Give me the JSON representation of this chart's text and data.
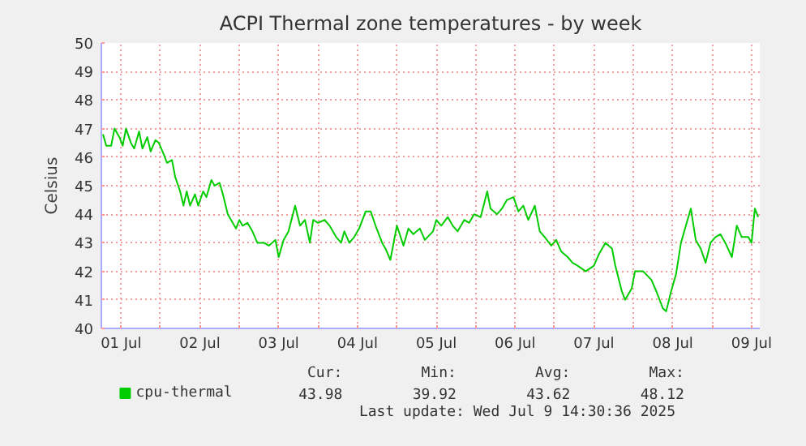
{
  "chart_data": {
    "type": "line",
    "title": "ACPI Thermal zone temperatures - by week",
    "ylabel": "Celsius",
    "x": [
      "2025-07-01T06:30",
      "2025-07-01T07:30",
      "2025-07-01T09:00",
      "2025-07-01T10:00",
      "2025-07-01T11:30",
      "2025-07-01T12:30",
      "2025-07-01T13:30",
      "2025-07-01T15:00",
      "2025-07-01T16:00",
      "2025-07-01T17:30",
      "2025-07-01T18:30",
      "2025-07-01T20:00",
      "2025-07-01T21:00",
      "2025-07-01T22:30",
      "2025-07-01T23:30",
      "2025-07-02T01:00",
      "2025-07-02T02:00",
      "2025-07-02T03:30",
      "2025-07-02T04:30",
      "2025-07-02T06:00",
      "2025-07-02T07:00",
      "2025-07-02T08:00",
      "2025-07-02T09:00",
      "2025-07-02T10:30",
      "2025-07-02T11:30",
      "2025-07-02T13:00",
      "2025-07-02T14:00",
      "2025-07-02T15:30",
      "2025-07-02T16:30",
      "2025-07-02T18:00",
      "2025-07-02T19:00",
      "2025-07-02T20:30",
      "2025-07-02T21:30",
      "2025-07-02T23:00",
      "2025-07-03T00:00",
      "2025-07-03T01:00",
      "2025-07-03T02:30",
      "2025-07-03T04:00",
      "2025-07-03T05:30",
      "2025-07-03T07:30",
      "2025-07-03T09:00",
      "2025-07-03T11:00",
      "2025-07-03T12:00",
      "2025-07-03T13:30",
      "2025-07-03T15:00",
      "2025-07-03T17:00",
      "2025-07-03T18:30",
      "2025-07-03T20:00",
      "2025-07-03T21:30",
      "2025-07-03T22:30",
      "2025-07-04T00:00",
      "2025-07-04T02:00",
      "2025-07-04T03:30",
      "2025-07-04T05:30",
      "2025-07-04T07:00",
      "2025-07-04T08:00",
      "2025-07-04T09:30",
      "2025-07-04T11:00",
      "2025-07-04T12:30",
      "2025-07-04T14:30",
      "2025-07-04T16:00",
      "2025-07-04T17:30",
      "2025-07-04T19:30",
      "2025-07-04T20:30",
      "2025-07-04T22:00",
      "2025-07-04T23:00",
      "2025-07-05T00:00",
      "2025-07-05T02:00",
      "2025-07-05T03:30",
      "2025-07-05T05:00",
      "2025-07-05T07:00",
      "2025-07-05T08:30",
      "2025-07-05T11:00",
      "2025-07-05T12:00",
      "2025-07-05T13:30",
      "2025-07-05T15:30",
      "2025-07-05T17:00",
      "2025-07-05T18:30",
      "2025-07-05T20:30",
      "2025-07-05T22:00",
      "2025-07-05T23:30",
      "2025-07-06T01:30",
      "2025-07-06T03:30",
      "2025-07-06T04:30",
      "2025-07-06T06:30",
      "2025-07-06T08:00",
      "2025-07-06T09:30",
      "2025-07-06T11:30",
      "2025-07-06T13:00",
      "2025-07-06T14:30",
      "2025-07-06T16:00",
      "2025-07-06T18:00",
      "2025-07-06T19:30",
      "2025-07-06T21:00",
      "2025-07-06T23:00",
      "2025-07-07T00:30",
      "2025-07-07T02:00",
      "2025-07-07T04:00",
      "2025-07-07T05:30",
      "2025-07-07T07:00",
      "2025-07-07T09:30",
      "2025-07-07T12:00",
      "2025-07-07T13:30",
      "2025-07-07T15:30",
      "2025-07-07T17:30",
      "2025-07-07T18:30",
      "2025-07-07T20:30",
      "2025-07-07T21:30",
      "2025-07-07T23:30",
      "2025-07-08T00:30",
      "2025-07-08T03:00",
      "2025-07-08T05:30",
      "2025-07-08T07:00",
      "2025-07-08T09:00",
      "2025-07-08T10:00",
      "2025-07-08T11:30",
      "2025-07-08T13:00",
      "2025-07-08T14:30",
      "2025-07-08T16:00",
      "2025-07-08T17:30",
      "2025-07-08T19:00",
      "2025-07-08T20:30",
      "2025-07-08T22:00",
      "2025-07-08T23:30",
      "2025-07-09T01:00",
      "2025-07-09T02:30",
      "2025-07-09T04:00",
      "2025-07-09T06:00",
      "2025-07-09T07:30",
      "2025-07-09T09:00",
      "2025-07-09T11:00",
      "2025-07-09T12:00",
      "2025-07-09T13:00",
      "2025-07-09T14:00"
    ],
    "series": [
      {
        "name": "cpu-thermal",
        "color": "#00cc00",
        "values": [
          46.8,
          46.4,
          46.4,
          47.0,
          46.7,
          46.4,
          47.0,
          46.5,
          46.3,
          46.9,
          46.3,
          46.7,
          46.2,
          46.6,
          46.5,
          46.1,
          45.8,
          45.9,
          45.3,
          44.8,
          44.3,
          44.8,
          44.3,
          44.7,
          44.3,
          44.8,
          44.6,
          45.2,
          45.0,
          45.1,
          44.7,
          44.0,
          43.8,
          43.5,
          43.8,
          43.6,
          43.7,
          43.4,
          43.0,
          43.0,
          42.9,
          43.1,
          42.5,
          43.1,
          43.4,
          44.3,
          43.6,
          43.8,
          43.0,
          43.8,
          43.7,
          43.8,
          43.6,
          43.2,
          43.0,
          43.4,
          43.0,
          43.2,
          43.5,
          44.1,
          44.1,
          43.6,
          43.0,
          42.8,
          42.4,
          43.0,
          43.6,
          42.9,
          43.5,
          43.3,
          43.5,
          43.1,
          43.4,
          43.8,
          43.6,
          43.9,
          43.6,
          43.4,
          43.8,
          43.7,
          44.0,
          43.9,
          44.8,
          44.2,
          44.0,
          44.2,
          44.5,
          44.6,
          44.1,
          44.3,
          43.8,
          44.3,
          43.4,
          43.2,
          42.9,
          43.1,
          42.7,
          42.5,
          42.3,
          42.2,
          42.0,
          42.2,
          42.6,
          43.0,
          42.8,
          42.2,
          41.3,
          41.0,
          41.4,
          42.0,
          42.0,
          41.7,
          41.3,
          40.7,
          40.6,
          41.3,
          41.9,
          43.0,
          43.6,
          44.2,
          43.1,
          42.8,
          42.3,
          43.0,
          43.2,
          43.3,
          43.0,
          42.5,
          43.6,
          43.2,
          43.2,
          43.0,
          44.2,
          43.9
        ]
      }
    ],
    "xlim": [
      "2025-07-01T06:00",
      "2025-07-09T14:30"
    ],
    "xticks": [
      {
        "value": "2025-07-01T12:00",
        "label": "01 Jul"
      },
      {
        "value": "2025-07-02T00:00",
        "label": null
      },
      {
        "value": "2025-07-02T12:00",
        "label": "02 Jul"
      },
      {
        "value": "2025-07-03T00:00",
        "label": null
      },
      {
        "value": "2025-07-03T12:00",
        "label": "03 Jul"
      },
      {
        "value": "2025-07-04T00:00",
        "label": null
      },
      {
        "value": "2025-07-04T12:00",
        "label": "04 Jul"
      },
      {
        "value": "2025-07-05T00:00",
        "label": null
      },
      {
        "value": "2025-07-05T12:00",
        "label": "05 Jul"
      },
      {
        "value": "2025-07-06T00:00",
        "label": null
      },
      {
        "value": "2025-07-06T12:00",
        "label": "06 Jul"
      },
      {
        "value": "2025-07-07T00:00",
        "label": null
      },
      {
        "value": "2025-07-07T12:00",
        "label": "07 Jul"
      },
      {
        "value": "2025-07-08T00:00",
        "label": null
      },
      {
        "value": "2025-07-08T12:00",
        "label": "08 Jul"
      },
      {
        "value": "2025-07-09T00:00",
        "label": null
      },
      {
        "value": "2025-07-09T12:00",
        "label": "09 Jul"
      }
    ],
    "ylim": [
      40,
      50
    ],
    "yticks": [
      40,
      41,
      42,
      43,
      44,
      45,
      46,
      47,
      48,
      49,
      50
    ],
    "grid": true,
    "legend": "bottom",
    "marker": "none",
    "line_style": "solid",
    "annotations": [
      "Cur:",
      "43.98",
      "Min:",
      "39.92",
      "Avg:",
      "43.62",
      "Max:",
      "48.12",
      "Last update: Wed Jul  9 14:30:36 2025"
    ]
  }
}
